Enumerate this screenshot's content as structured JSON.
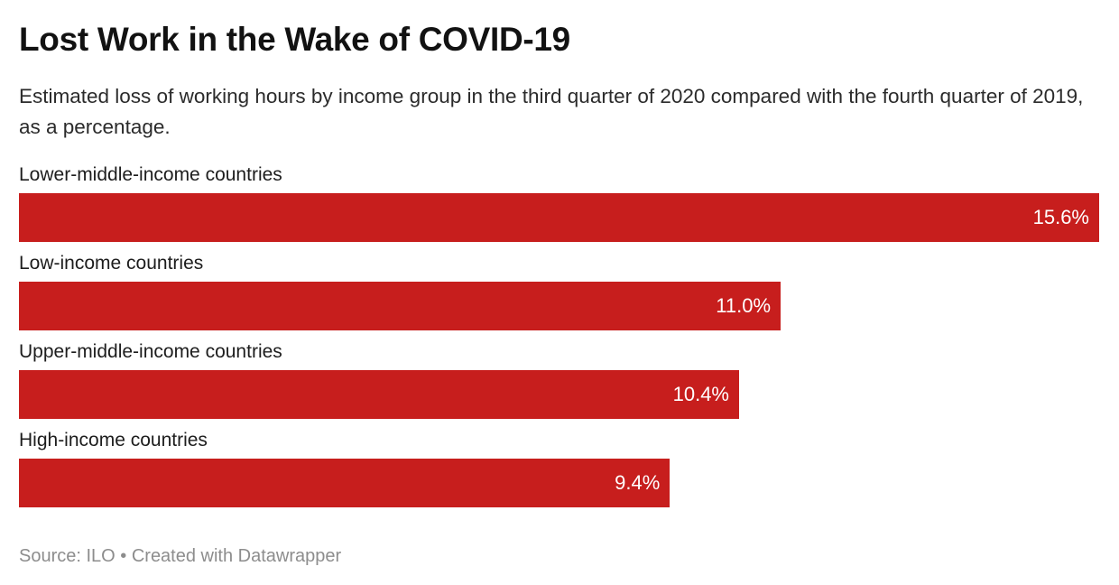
{
  "header": {
    "title": "Lost Work in the Wake of COVID-19",
    "subtitle": "Estimated loss of working hours by income group in the third quarter of 2020 compared with the fourth quarter of 2019, as a percentage."
  },
  "chart_data": {
    "type": "bar",
    "orientation": "horizontal",
    "title": "Lost Work in the Wake of COVID-19",
    "subtitle": "Estimated loss of working hours by income group in the third quarter of 2020 compared with the fourth quarter of 2019, as a percentage.",
    "categories": [
      "Lower-middle-income countries",
      "Low-income countries",
      "Upper-middle-income countries",
      "High-income countries"
    ],
    "values": [
      15.6,
      11.0,
      10.4,
      9.4
    ],
    "value_labels": [
      "15.6%",
      "11.0%",
      "10.4%",
      "9.4%"
    ],
    "xlabel": "",
    "ylabel": "",
    "xlim": [
      0,
      15.6
    ],
    "grid": false,
    "legend": false,
    "value_label_position": "inside-end",
    "bar_color": "#c71e1d",
    "value_label_color": "#ffffff"
  },
  "footer": {
    "text": "Source: ILO • Created with Datawrapper"
  },
  "colors": {
    "bar": "#c71e1d",
    "title": "#121212",
    "subtitle": "#2b2b2b",
    "category_label": "#1d1d1d",
    "value_label": "#ffffff",
    "footer": "#8d8d8d",
    "background": "#ffffff"
  }
}
